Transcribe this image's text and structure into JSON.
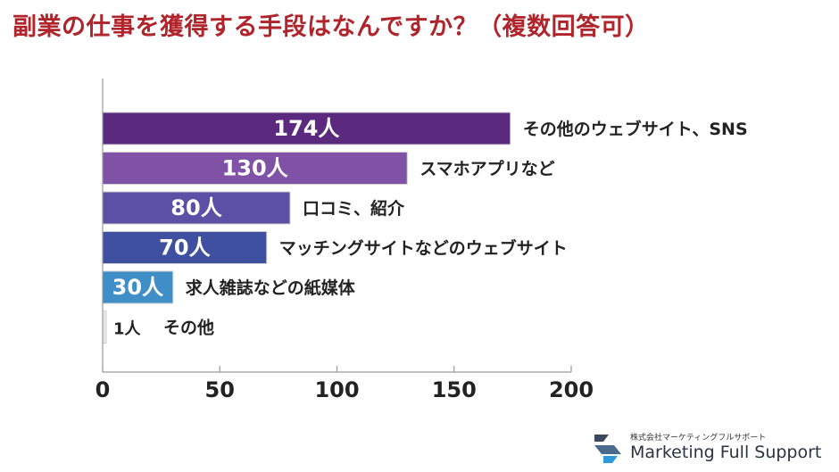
{
  "title": "副業の仕事を獲得する手段はなんですか？（複数回答可）",
  "chart_data": {
    "type": "bar",
    "orientation": "horizontal",
    "title": "副業の仕事を獲得する手段はなんですか？（複数回答可）",
    "xlim": [
      0,
      200
    ],
    "x_ticks": [
      "0",
      "50",
      "100",
      "150",
      "200"
    ],
    "grid": false,
    "value_unit": "人",
    "categories": [
      "その他のウェブサイト、SNS",
      "スマホアプリなど",
      "口コミ、紹介",
      "マッチングサイトなどのウェブサイト",
      "求人雑誌などの紙媒体",
      "その他"
    ],
    "values": [
      174,
      130,
      80,
      70,
      30,
      1
    ],
    "value_labels": [
      "174人",
      "130人",
      "80人",
      "70人",
      "30人",
      "1人"
    ],
    "colors": [
      "#5b2a7f",
      "#8052a6",
      "#5b4fa6",
      "#4050a0",
      "#3f8ec8",
      "#e8e8e8"
    ]
  },
  "logo": {
    "company": "株式会社マーケティングフルサポート",
    "name": "Marketing Full Support",
    "icon": "mfs-logo-icon"
  }
}
